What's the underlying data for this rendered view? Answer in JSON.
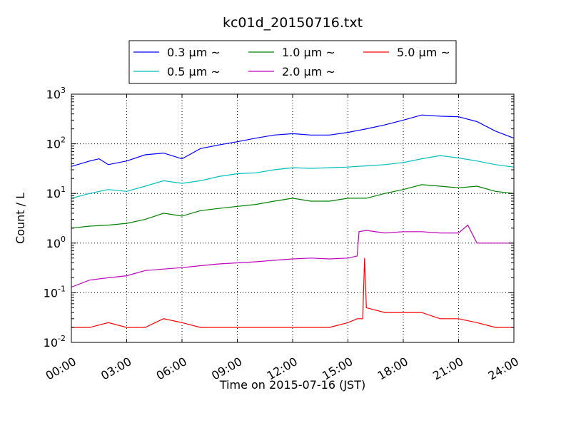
{
  "chart_data": {
    "type": "line",
    "title": "kc01d_20150716.txt",
    "xlabel": "Time on 2015-07-16 (JST)",
    "ylabel": "Count / L",
    "y_scale": "log",
    "ylim": [
      0.01,
      1000
    ],
    "xlim": [
      "00:00",
      "24:00"
    ],
    "x_ticks": [
      "00:00",
      "03:00",
      "06:00",
      "09:00",
      "12:00",
      "15:00",
      "18:00",
      "21:00",
      "24:00"
    ],
    "y_ticks": [
      {
        "base": "10",
        "exp": "-2"
      },
      {
        "base": "10",
        "exp": "-1"
      },
      {
        "base": "10",
        "exp": "0"
      },
      {
        "base": "10",
        "exp": "1"
      },
      {
        "base": "10",
        "exp": "2"
      },
      {
        "base": "10",
        "exp": "3"
      }
    ],
    "grid": true,
    "legend_position": "top-center",
    "series": [
      {
        "name": "0.3 μm ~",
        "color": "#0000ff",
        "x": [
          0,
          1,
          1.5,
          2,
          3,
          4,
          5,
          6,
          7,
          8,
          9,
          10,
          11,
          12,
          13,
          14,
          15,
          16,
          17,
          18,
          19,
          20,
          21,
          22,
          23,
          24
        ],
        "y": [
          35,
          45,
          50,
          38,
          45,
          60,
          65,
          50,
          80,
          95,
          110,
          130,
          150,
          160,
          150,
          150,
          170,
          200,
          240,
          300,
          380,
          360,
          350,
          280,
          180,
          130
        ]
      },
      {
        "name": "0.5 μm ~",
        "color": "#00bfbf",
        "x": [
          0,
          1,
          2,
          3,
          4,
          5,
          6,
          7,
          8,
          9,
          10,
          11,
          12,
          13,
          14,
          15,
          16,
          17,
          18,
          19,
          20,
          21,
          22,
          23,
          24
        ],
        "y": [
          8,
          10,
          12,
          11,
          14,
          18,
          16,
          18,
          22,
          25,
          26,
          30,
          33,
          32,
          33,
          34,
          36,
          38,
          42,
          50,
          58,
          52,
          45,
          38,
          34
        ]
      },
      {
        "name": "1.0 μm ~",
        "color": "#008000",
        "x": [
          0,
          1,
          2,
          3,
          4,
          5,
          6,
          7,
          8,
          9,
          10,
          11,
          12,
          13,
          14,
          15,
          16,
          17,
          18,
          19,
          20,
          21,
          22,
          23,
          24
        ],
        "y": [
          2.0,
          2.2,
          2.3,
          2.5,
          3.0,
          4.0,
          3.5,
          4.5,
          5.0,
          5.5,
          6.0,
          7.0,
          8.0,
          7.0,
          7.0,
          8.0,
          8.0,
          10,
          12,
          15,
          14,
          13,
          14,
          11,
          10
        ]
      },
      {
        "name": "2.0 μm ~",
        "color": "#bf00bf",
        "x": [
          0,
          1,
          2,
          3,
          4,
          5,
          6,
          7,
          8,
          9,
          10,
          11,
          12,
          13,
          14,
          15,
          15.5,
          15.6,
          16,
          17,
          18,
          19,
          20,
          21,
          21.5,
          22,
          23,
          24
        ],
        "y": [
          0.13,
          0.18,
          0.2,
          0.22,
          0.28,
          0.3,
          0.32,
          0.35,
          0.38,
          0.4,
          0.42,
          0.45,
          0.48,
          0.5,
          0.48,
          0.5,
          0.55,
          1.7,
          1.8,
          1.6,
          1.7,
          1.7,
          1.6,
          1.6,
          2.3,
          1.0,
          1.0,
          1.0
        ]
      },
      {
        "name": "5.0 μm ~",
        "color": "#ff0000",
        "x": [
          0,
          1,
          2,
          3,
          4,
          5,
          6,
          7,
          8,
          9,
          10,
          11,
          12,
          13,
          14,
          15,
          15.5,
          15.8,
          15.9,
          16,
          17,
          18,
          19,
          20,
          21,
          22,
          23,
          24
        ],
        "y": [
          0.02,
          0.02,
          0.025,
          0.02,
          0.02,
          0.03,
          0.025,
          0.02,
          0.02,
          0.02,
          0.02,
          0.02,
          0.02,
          0.02,
          0.02,
          0.025,
          0.03,
          0.03,
          0.5,
          0.05,
          0.04,
          0.04,
          0.04,
          0.03,
          0.03,
          0.025,
          0.02,
          0.02
        ]
      }
    ]
  }
}
